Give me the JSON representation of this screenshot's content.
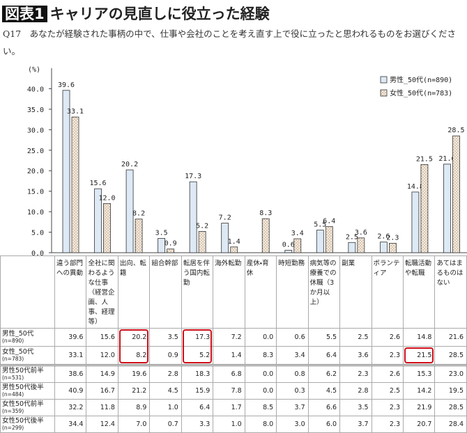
{
  "header": {
    "label": "図表1",
    "title": "キャリアの見直しに役立った経験",
    "question": "Q17　あなたが経験された事柄の中で、仕事や会社のことを考え直す上で役に立ったと思われるものをお選びください。"
  },
  "chart_data": {
    "type": "bar",
    "y_label": "(%)",
    "categories": [
      "違う部門への異動",
      "全社に関わるような仕事（経営企画、人事、経理等）",
      "出向、転籍",
      "組合幹部",
      "転居を伴う国内転勤",
      "海外転勤",
      "産休・育休",
      "時短勤務",
      "病気等の療養での休職（3か月以上）",
      "副業",
      "ボランティア",
      "転職活動や転職",
      "あてはまるものはない"
    ],
    "series": [
      {
        "name": "男性_50代(n=890)",
        "color": "#dde9f5",
        "pattern": "solid",
        "values": [
          39.6,
          15.6,
          20.2,
          3.5,
          17.3,
          7.2,
          0,
          0.6,
          5.5,
          2.5,
          2.6,
          14.8,
          21.6
        ],
        "value_labels": [
          "39.6",
          "15.6",
          "20.2",
          "3.5",
          "17.3",
          "7.2",
          null,
          "0.6",
          "5.5",
          "2.5",
          "2.6",
          "14.8",
          "21.6"
        ]
      },
      {
        "name": "女性_50代(n=783)",
        "color": "#f6ecdf",
        "pattern": "dots",
        "values": [
          33.1,
          12,
          8.2,
          0.9,
          5.2,
          1.4,
          8.3,
          3.4,
          6.4,
          3.6,
          2.3,
          21.5,
          28.5
        ],
        "value_labels": [
          "33.1",
          "12.0",
          "8.2",
          "0.9",
          "5.2",
          "1.4",
          "8.3",
          "3.4",
          "6.4",
          "3.6",
          "2.3",
          "21.5",
          "28.5"
        ]
      }
    ],
    "ylim": [
      0,
      45
    ],
    "yticks": [
      {
        "value": 0,
        "label": "0.0"
      },
      {
        "value": 5,
        "label": "5.0"
      },
      {
        "value": 10,
        "label": "10.0"
      },
      {
        "value": 15,
        "label": "15.0"
      },
      {
        "value": 20,
        "label": "20.0"
      },
      {
        "value": 25,
        "label": "25.0"
      },
      {
        "value": 30,
        "label": "30.0"
      },
      {
        "value": 35,
        "label": "35.0"
      },
      {
        "value": 40,
        "label": "40.0"
      }
    ],
    "legend": "upper right",
    "grid": false
  },
  "table": {
    "rows": [
      {
        "label": "男性_50代",
        "n": "(n=890)",
        "values": [
          "39.6",
          "15.6",
          "20.2",
          "3.5",
          "17.3",
          "7.2",
          "0.0",
          "0.6",
          "5.5",
          "2.5",
          "2.6",
          "14.8",
          "21.6"
        ]
      },
      {
        "label": "女性_50代",
        "n": "(n=783)",
        "values": [
          "33.1",
          "12.0",
          "8.2",
          "0.9",
          "5.2",
          "1.4",
          "8.3",
          "3.4",
          "6.4",
          "3.6",
          "2.3",
          "21.5",
          "28.5"
        ]
      },
      {
        "label": "男性50代前半",
        "n": "(n=531)",
        "values": [
          "38.6",
          "14.9",
          "19.6",
          "2.8",
          "18.3",
          "6.8",
          "0.0",
          "0.8",
          "6.2",
          "2.3",
          "2.6",
          "15.3",
          "23.0"
        ]
      },
      {
        "label": "男性50代後半",
        "n": "(n=484)",
        "values": [
          "40.9",
          "16.7",
          "21.2",
          "4.5",
          "15.9",
          "7.8",
          "0.0",
          "0.3",
          "4.5",
          "2.8",
          "2.5",
          "14.2",
          "19.5"
        ]
      },
      {
        "label": "女性50代前半",
        "n": "(n=359)",
        "values": [
          "32.2",
          "11.8",
          "8.9",
          "1.0",
          "6.4",
          "1.7",
          "8.5",
          "3.7",
          "6.6",
          "3.5",
          "2.3",
          "21.9",
          "28.5"
        ]
      },
      {
        "label": "女性50代後半",
        "n": "(n=299)",
        "values": [
          "34.4",
          "12.4",
          "7.0",
          "0.7",
          "3.3",
          "1.0",
          "8.0",
          "3.0",
          "6.0",
          "3.7",
          "2.3",
          "20.7",
          "28.4"
        ]
      }
    ]
  }
}
